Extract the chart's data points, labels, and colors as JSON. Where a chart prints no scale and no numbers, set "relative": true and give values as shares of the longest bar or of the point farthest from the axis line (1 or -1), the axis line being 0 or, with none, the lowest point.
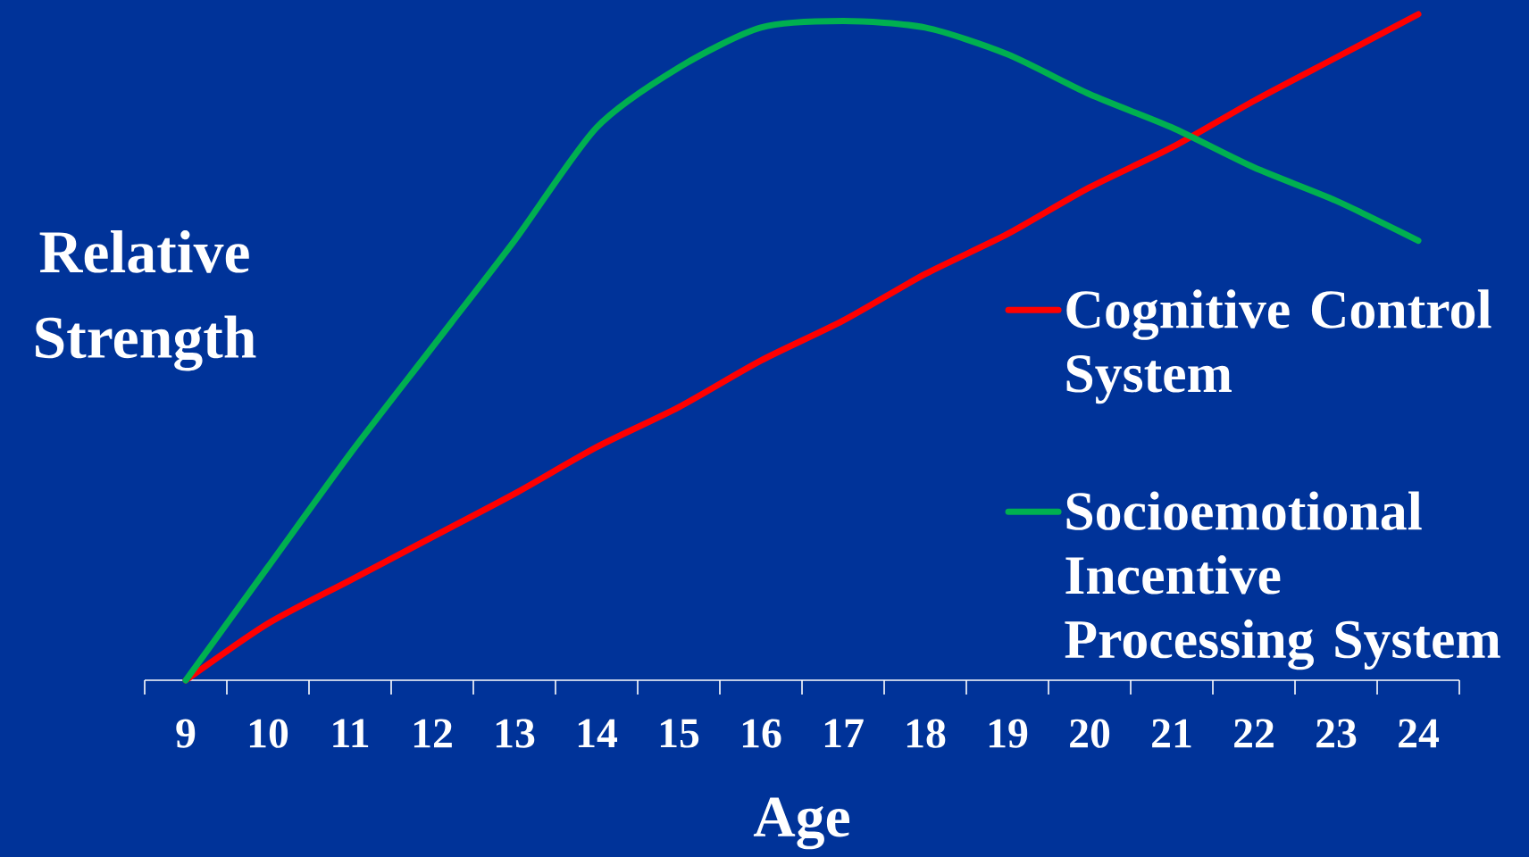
{
  "chart_data": {
    "type": "line",
    "xlabel": "Age",
    "ylabel": "Relative Strength",
    "relative": true,
    "categories": [
      "9",
      "10",
      "11",
      "12",
      "13",
      "14",
      "15",
      "16",
      "17",
      "18",
      "19",
      "20",
      "21",
      "22",
      "23",
      "24"
    ],
    "series": [
      {
        "name": "Cognitive Control System",
        "color": "#ff0000",
        "values": [
          0,
          0.085,
          0.15,
          0.215,
          0.28,
          0.35,
          0.41,
          0.48,
          0.54,
          0.61,
          0.67,
          0.74,
          0.8,
          0.87,
          0.935,
          1.0
        ]
      },
      {
        "name": "Socioemotional Incentive Processing System",
        "color": "#00b050",
        "values": [
          0,
          0.17,
          0.34,
          0.5,
          0.66,
          0.83,
          0.92,
          0.98,
          0.99,
          0.98,
          0.94,
          0.88,
          0.83,
          0.77,
          0.72,
          0.66
        ]
      }
    ],
    "legend": "right",
    "marker": "none",
    "line_style": "solid"
  }
}
